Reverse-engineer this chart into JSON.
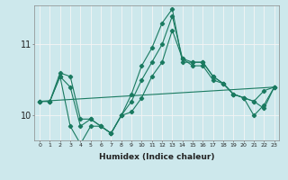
{
  "x": [
    0,
    1,
    2,
    3,
    4,
    5,
    6,
    7,
    8,
    9,
    10,
    11,
    12,
    13,
    14,
    15,
    16,
    17,
    18,
    19,
    20,
    21,
    22,
    23
  ],
  "line1": [
    10.2,
    10.2,
    10.6,
    10.55,
    9.95,
    9.95,
    9.85,
    9.75,
    10.0,
    10.05,
    10.25,
    10.55,
    10.75,
    11.2,
    10.8,
    10.75,
    10.75,
    10.55,
    10.45,
    10.3,
    10.25,
    10.0,
    10.15,
    10.4
  ],
  "line2": [
    10.2,
    10.2,
    10.55,
    9.85,
    9.6,
    9.85,
    9.85,
    9.75,
    10.0,
    10.3,
    10.7,
    10.95,
    11.3,
    11.5,
    10.75,
    10.75,
    10.75,
    10.55,
    10.45,
    10.3,
    10.25,
    10.2,
    10.35,
    10.4
  ],
  "line3": [
    10.2,
    10.2,
    10.55,
    10.4,
    9.85,
    9.95,
    9.85,
    9.75,
    10.0,
    10.2,
    10.5,
    10.75,
    11.0,
    11.4,
    10.8,
    10.7,
    10.7,
    10.5,
    10.45,
    10.3,
    10.25,
    10.2,
    10.1,
    10.4
  ],
  "line4_x": [
    0,
    23
  ],
  "line4_y": [
    10.2,
    10.4
  ],
  "background_color": "#cde8ec",
  "grid_color": "#f5f5f5",
  "line_color": "#1a7a60",
  "xlabel": "Humidex (Indice chaleur)",
  "ylim": [
    9.65,
    11.55
  ],
  "yticks": [
    10,
    11
  ],
  "xlim": [
    -0.5,
    23.5
  ],
  "figsize": [
    3.2,
    2.0
  ],
  "dpi": 100
}
